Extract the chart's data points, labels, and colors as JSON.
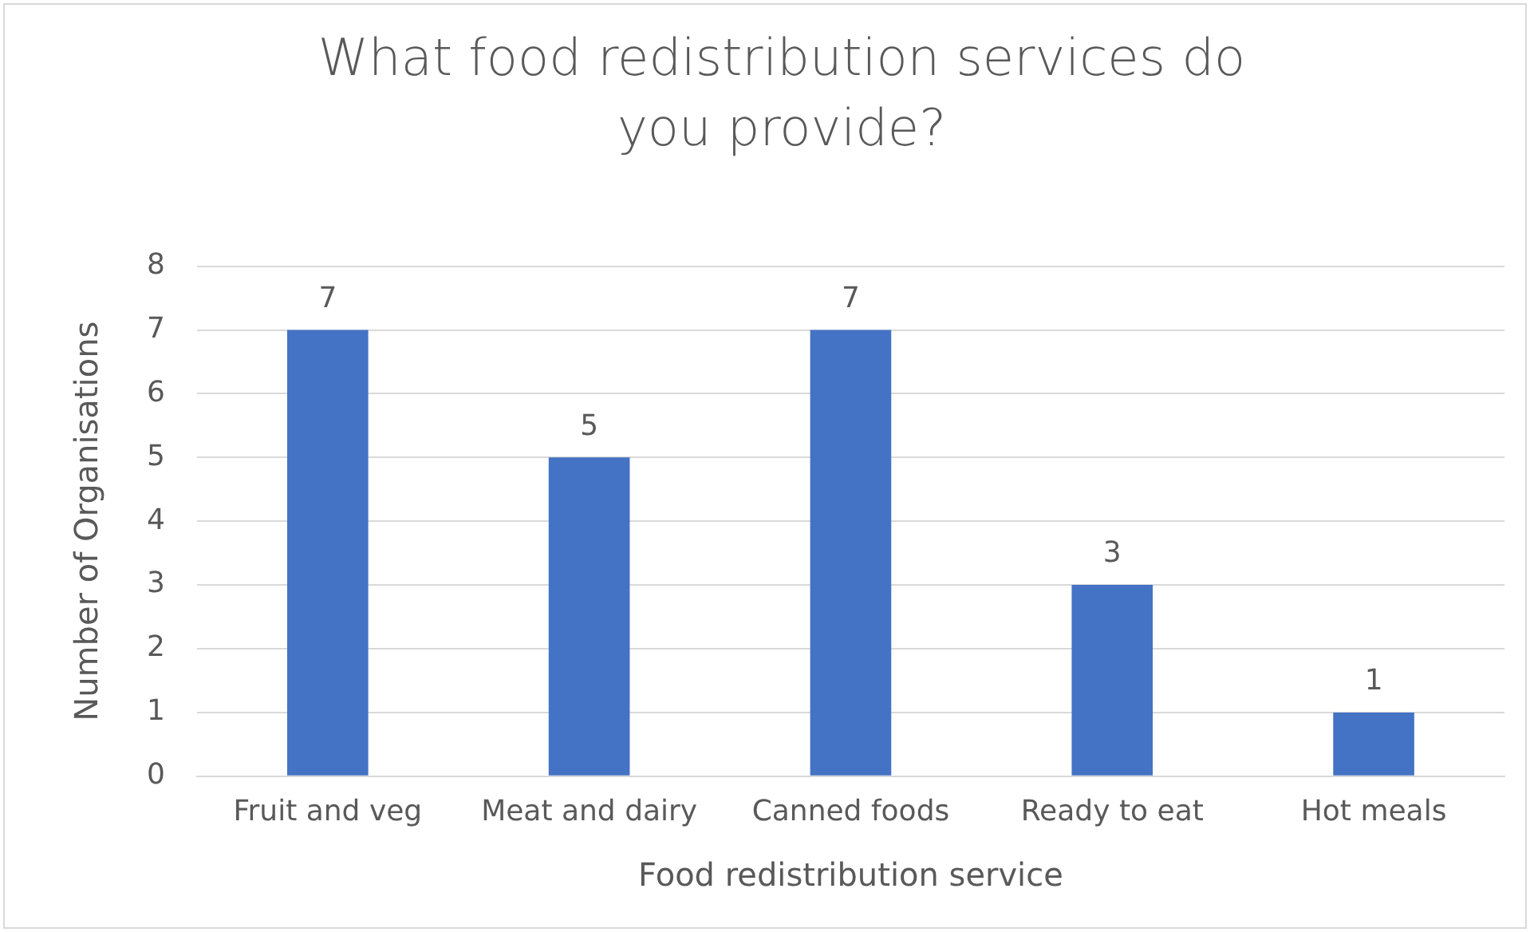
{
  "chart_data": {
    "type": "bar",
    "title": "What food redistribution services do you provide?",
    "xlabel": "Food redistribution service",
    "ylabel": "Number of Organisations",
    "categories": [
      "Fruit and veg",
      "Meat and dairy",
      "Canned foods",
      "Ready to eat",
      "Hot meals"
    ],
    "values": [
      7,
      5,
      7,
      3,
      1
    ],
    "color": "#4472c4",
    "ylim": [
      0,
      8
    ],
    "yticks": [
      0,
      1,
      2,
      3,
      4,
      5,
      6,
      7,
      8
    ],
    "grid": "y",
    "data_labels": true,
    "legend": false
  }
}
